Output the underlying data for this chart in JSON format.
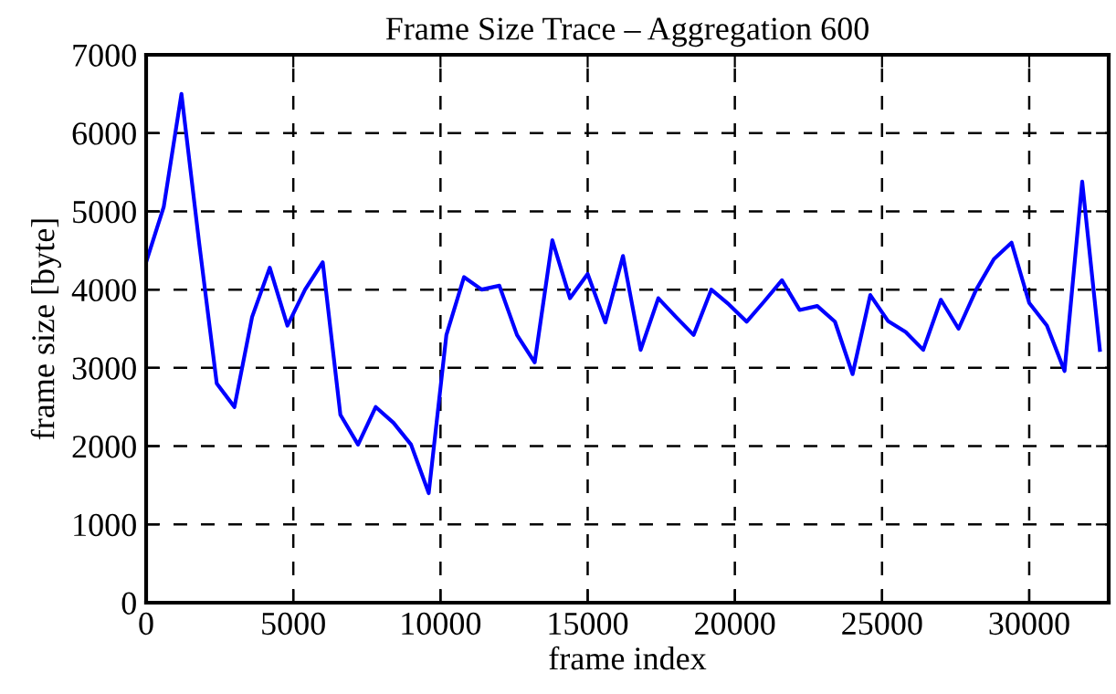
{
  "chart_data": {
    "type": "line",
    "title": "Frame Size Trace – Aggregation 600",
    "xlabel": "frame index",
    "ylabel": "frame size [byte]",
    "x": [
      0,
      600,
      1200,
      1800,
      2400,
      3000,
      3600,
      4200,
      4800,
      5400,
      6000,
      6600,
      7200,
      7800,
      8400,
      9000,
      9600,
      10200,
      10800,
      11400,
      12000,
      12600,
      13200,
      13800,
      14400,
      15000,
      15600,
      16200,
      16800,
      17400,
      18000,
      18600,
      19200,
      19800,
      20400,
      21000,
      21600,
      22200,
      22800,
      23400,
      24000,
      24600,
      25200,
      25800,
      26400,
      27000,
      27600,
      28200,
      28800,
      29400,
      30000,
      30600,
      31200,
      31800,
      32400
    ],
    "series": [
      {
        "color": "#0000ff",
        "values": [
          4350,
          5060,
          6500,
          4600,
          2800,
          2500,
          3650,
          4280,
          3540,
          4000,
          4350,
          2400,
          2020,
          2500,
          2300,
          2020,
          1400,
          3420,
          4160,
          4000,
          4050,
          3420,
          3070,
          4630,
          3890,
          4200,
          3580,
          4430,
          3230,
          3890,
          3650,
          3420,
          4000,
          3810,
          3590,
          3850,
          4120,
          3740,
          3790,
          3590,
          2920,
          3930,
          3600,
          3460,
          3230,
          3870,
          3500,
          4000,
          4390,
          4600,
          3830,
          3540,
          2960,
          5380,
          3230
        ]
      }
    ],
    "xlim": [
      0,
      32700
    ],
    "ylim": [
      0,
      7000
    ],
    "xticks": [
      0,
      5000,
      10000,
      15000,
      20000,
      25000,
      30000
    ],
    "yticks": [
      0,
      1000,
      2000,
      3000,
      4000,
      5000,
      6000,
      7000
    ],
    "grid": true,
    "line_style": "solid",
    "marker": "none"
  }
}
